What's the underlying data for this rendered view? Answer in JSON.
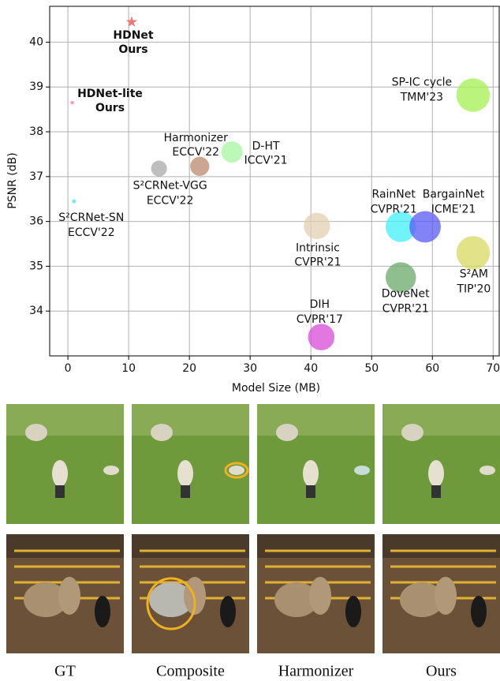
{
  "chart_data": {
    "type": "scatter",
    "x_label": "Model Size (MB)",
    "y_label": "PSNR (dB)",
    "xlim": [
      -3,
      71
    ],
    "ylim": [
      33,
      40.8
    ],
    "xticks": [
      0,
      10,
      20,
      30,
      40,
      50,
      60,
      70
    ],
    "yticks": [
      34,
      35,
      36,
      37,
      38,
      39,
      40
    ],
    "grid": true,
    "points": [
      {
        "name": "HDNet",
        "venue": "Ours",
        "x": 10.5,
        "y": 40.45,
        "color": "#f07878",
        "marker": "star",
        "bold": true
      },
      {
        "name": "HDNet-lite",
        "venue": "Ours",
        "x": 0.7,
        "y": 38.65,
        "color": "#ff6fb0",
        "marker": "circle",
        "bold": true
      },
      {
        "name": "S²CRNet-SN",
        "venue": "ECCV'22",
        "x": 1,
        "y": 36.45,
        "color": "#40e8f0",
        "marker": "circle",
        "bold": false
      },
      {
        "name": "S²CRNet-VGG",
        "venue": "ECCV'22",
        "x": 15,
        "y": 37.18,
        "color": "#a8a8a8",
        "marker": "circle",
        "bold": false
      },
      {
        "name": "Harmonizer",
        "venue": "ECCV'22",
        "x": 21.7,
        "y": 37.23,
        "color": "#b98a6c",
        "marker": "circle",
        "bold": false
      },
      {
        "name": "D-HT",
        "venue": "ICCV'21",
        "x": 27,
        "y": 37.55,
        "color": "#a6f5a0",
        "marker": "circle",
        "bold": false
      },
      {
        "name": "Intrinsic",
        "venue": "CVPR'21",
        "x": 41,
        "y": 35.9,
        "color": "#e2cfb0",
        "marker": "circle",
        "bold": false
      },
      {
        "name": "RainNet",
        "venue": "CVPR'21",
        "x": 54.8,
        "y": 35.88,
        "color": "#40f0f8",
        "marker": "circle",
        "bold": false
      },
      {
        "name": "BargainNet",
        "venue": "ICME'21",
        "x": 58.8,
        "y": 35.88,
        "color": "#5a5af5",
        "marker": "circle",
        "bold": false
      },
      {
        "name": "S²AM",
        "venue": "TIP'20",
        "x": 66.7,
        "y": 35.3,
        "color": "#d8d860",
        "marker": "circle",
        "bold": false
      },
      {
        "name": "SP-IC cycle",
        "venue": "TMM'23",
        "x": 66.7,
        "y": 38.82,
        "color": "#a4f050",
        "marker": "circle",
        "bold": false
      },
      {
        "name": "DoveNet",
        "venue": "CVPR'21",
        "x": 54.8,
        "y": 34.75,
        "color": "#6aaa6a",
        "marker": "circle",
        "bold": false
      },
      {
        "name": "DIH",
        "venue": "CVPR'17",
        "x": 41.7,
        "y": 33.42,
        "color": "#d84ad8",
        "marker": "circle",
        "bold": false
      }
    ]
  },
  "figure": {
    "captions": [
      "GT",
      "Composite",
      "Harmonizer",
      "Ours"
    ]
  }
}
